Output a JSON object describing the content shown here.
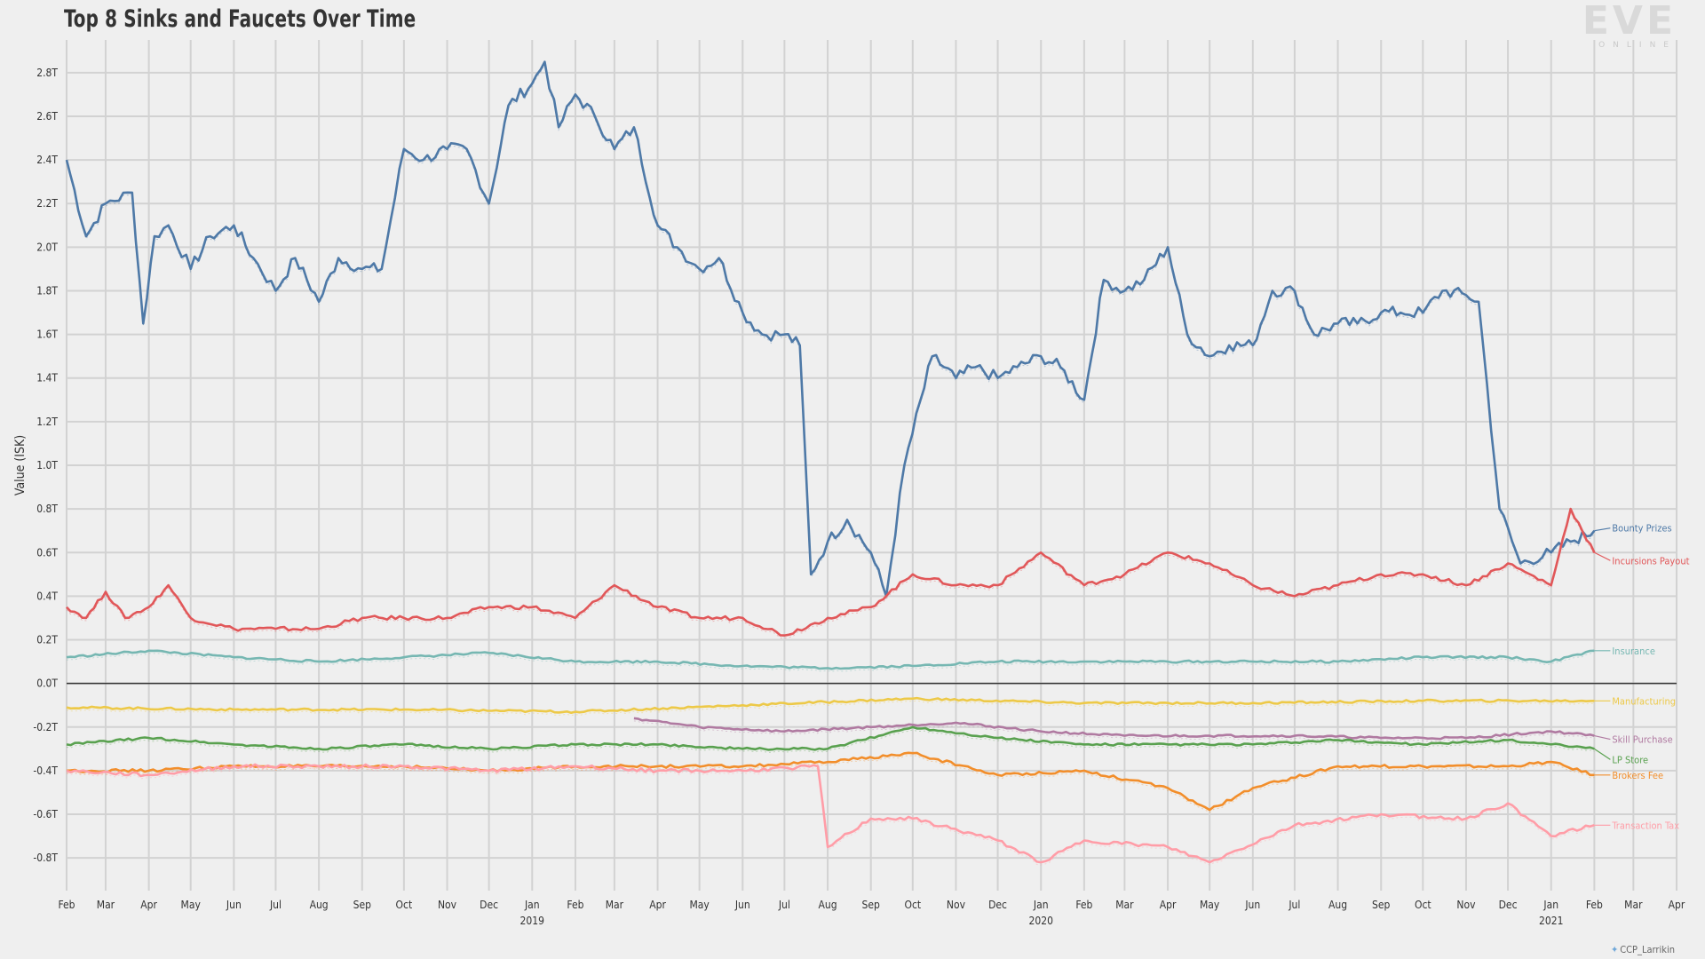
{
  "title": "Top 8 Sinks and Faucets Over Time",
  "logo": {
    "text": "EVE",
    "subtext": "ONLINE"
  },
  "credit": "CCP_Larrikin",
  "chart_data": {
    "type": "line",
    "title": "Top 8 Sinks and Faucets Over Time",
    "xlabel": "",
    "ylabel": "Value (ISK)",
    "x_range": [
      "2018-02",
      "2021-04"
    ],
    "ylim": [
      -0.95,
      2.95
    ],
    "y_unit": "T",
    "grid": true,
    "legend": "end-of-line labels",
    "yticks": [
      "-0.8T",
      "-0.6T",
      "-0.4T",
      "-0.2T",
      "0.0T",
      "0.2T",
      "0.4T",
      "0.6T",
      "0.8T",
      "1.0T",
      "1.2T",
      "1.4T",
      "1.6T",
      "1.8T",
      "2.0T",
      "2.2T",
      "2.4T",
      "2.6T",
      "2.8T"
    ],
    "xticks": [
      "Feb",
      "Mar",
      "Apr",
      "May",
      "Jun",
      "Jul",
      "Aug",
      "Sep",
      "Oct",
      "Nov",
      "Dec",
      "Jan",
      "Feb",
      "Mar",
      "Apr",
      "May",
      "Jun",
      "Jul",
      "Aug",
      "Sep",
      "Oct",
      "Nov",
      "Dec",
      "Jan",
      "Feb",
      "Mar",
      "Apr",
      "May",
      "Jun",
      "Jul",
      "Aug",
      "Sep",
      "Oct",
      "Nov",
      "Dec",
      "Jan",
      "Feb",
      "Mar",
      "Apr"
    ],
    "year_labels": [
      {
        "year": "2019",
        "month": "2019-01"
      },
      {
        "year": "2020",
        "month": "2020-01"
      },
      {
        "year": "2021",
        "month": "2021-01"
      }
    ],
    "series": [
      {
        "name": "Bounty Prizes",
        "color": "#4e79a7",
        "x": [
          "2018-02-01",
          "2018-02-15",
          "2018-03-01",
          "2018-03-20",
          "2018-03-28",
          "2018-04-05",
          "2018-04-15",
          "2018-05-01",
          "2018-05-15",
          "2018-06-01",
          "2018-06-15",
          "2018-07-01",
          "2018-07-15",
          "2018-08-01",
          "2018-08-15",
          "2018-09-01",
          "2018-09-15",
          "2018-10-01",
          "2018-10-15",
          "2018-11-01",
          "2018-11-15",
          "2018-12-01",
          "2018-12-15",
          "2019-01-01",
          "2019-01-10",
          "2019-01-20",
          "2019-02-01",
          "2019-02-15",
          "2019-03-01",
          "2019-03-15",
          "2019-04-01",
          "2019-04-15",
          "2019-05-01",
          "2019-05-15",
          "2019-06-01",
          "2019-06-15",
          "2019-07-01",
          "2019-07-12",
          "2019-07-20",
          "2019-08-01",
          "2019-08-15",
          "2019-09-01",
          "2019-09-12",
          "2019-09-25",
          "2019-10-15",
          "2019-11-01",
          "2019-11-15",
          "2019-12-01",
          "2019-12-15",
          "2020-01-01",
          "2020-01-15",
          "2020-02-01",
          "2020-02-15",
          "2020-03-01",
          "2020-03-15",
          "2020-04-01",
          "2020-04-15",
          "2020-05-01",
          "2020-05-15",
          "2020-06-01",
          "2020-06-15",
          "2020-07-01",
          "2020-07-15",
          "2020-08-01",
          "2020-08-15",
          "2020-09-01",
          "2020-09-15",
          "2020-10-01",
          "2020-10-15",
          "2020-11-01",
          "2020-11-10",
          "2020-11-25",
          "2020-12-10",
          "2021-01-01",
          "2021-01-15",
          "2021-02-01"
        ],
        "y": [
          2.4,
          2.05,
          2.2,
          2.25,
          1.65,
          2.05,
          2.1,
          1.9,
          2.05,
          2.1,
          1.95,
          1.8,
          1.95,
          1.75,
          1.95,
          1.9,
          1.9,
          2.45,
          2.4,
          2.45,
          2.45,
          2.2,
          2.65,
          2.75,
          2.85,
          2.55,
          2.7,
          2.6,
          2.45,
          2.55,
          2.1,
          2.0,
          1.9,
          1.95,
          1.7,
          1.6,
          1.6,
          1.55,
          0.5,
          0.65,
          0.75,
          0.6,
          0.4,
          1.0,
          1.5,
          1.4,
          1.45,
          1.4,
          1.45,
          1.5,
          1.45,
          1.3,
          1.85,
          1.8,
          1.85,
          2.0,
          1.6,
          1.5,
          1.55,
          1.55,
          1.8,
          1.8,
          1.6,
          1.65,
          1.65,
          1.7,
          1.7,
          1.7,
          1.8,
          1.78,
          1.75,
          0.8,
          0.55,
          0.6,
          0.65,
          0.7
        ]
      },
      {
        "name": "Incursions Payout",
        "color": "#e15759",
        "x": [
          "2018-02-01",
          "2018-02-15",
          "2018-03-01",
          "2018-03-15",
          "2018-04-01",
          "2018-04-15",
          "2018-05-01",
          "2018-06-01",
          "2018-07-01",
          "2018-08-01",
          "2018-09-01",
          "2018-10-01",
          "2018-11-01",
          "2018-12-01",
          "2019-01-01",
          "2019-02-01",
          "2019-03-01",
          "2019-04-01",
          "2019-05-01",
          "2019-06-01",
          "2019-07-01",
          "2019-08-01",
          "2019-09-01",
          "2019-10-01",
          "2019-11-01",
          "2019-12-01",
          "2020-01-01",
          "2020-02-01",
          "2020-03-01",
          "2020-04-01",
          "2020-05-01",
          "2020-06-01",
          "2020-07-01",
          "2020-08-01",
          "2020-09-01",
          "2020-10-01",
          "2020-11-01",
          "2020-12-01",
          "2021-01-01",
          "2021-01-15",
          "2021-02-01"
        ],
        "y": [
          0.35,
          0.3,
          0.42,
          0.3,
          0.35,
          0.45,
          0.3,
          0.25,
          0.25,
          0.25,
          0.3,
          0.3,
          0.3,
          0.35,
          0.35,
          0.3,
          0.45,
          0.35,
          0.3,
          0.3,
          0.22,
          0.3,
          0.35,
          0.5,
          0.45,
          0.45,
          0.6,
          0.45,
          0.5,
          0.6,
          0.55,
          0.45,
          0.4,
          0.45,
          0.5,
          0.5,
          0.45,
          0.55,
          0.45,
          0.8,
          0.6
        ]
      },
      {
        "name": "Insurance",
        "color": "#76b7b2",
        "x": [
          "2018-02-01",
          "2018-04-01",
          "2018-06-01",
          "2018-08-01",
          "2018-10-01",
          "2018-12-01",
          "2019-02-01",
          "2019-04-01",
          "2019-06-01",
          "2019-08-01",
          "2019-10-01",
          "2019-12-01",
          "2020-02-01",
          "2020-04-01",
          "2020-06-01",
          "2020-08-01",
          "2020-10-01",
          "2020-12-01",
          "2021-01-01",
          "2021-02-01"
        ],
        "y": [
          0.12,
          0.15,
          0.12,
          0.1,
          0.12,
          0.14,
          0.1,
          0.1,
          0.08,
          0.07,
          0.08,
          0.1,
          0.1,
          0.1,
          0.1,
          0.1,
          0.12,
          0.12,
          0.1,
          0.15
        ]
      },
      {
        "name": "Manufacturing",
        "color": "#edc948",
        "x": [
          "2018-02-01",
          "2018-06-01",
          "2018-10-01",
          "2019-02-01",
          "2019-06-01",
          "2019-10-01",
          "2020-02-01",
          "2020-06-01",
          "2020-10-01",
          "2021-02-01"
        ],
        "y": [
          -0.11,
          -0.12,
          -0.12,
          -0.13,
          -0.1,
          -0.07,
          -0.09,
          -0.09,
          -0.08,
          -0.08
        ]
      },
      {
        "name": "Skill Purchase",
        "color": "#b07aa1",
        "x": [
          "2019-03-15",
          "2019-05-01",
          "2019-07-01",
          "2019-09-01",
          "2019-11-01",
          "2020-01-01",
          "2020-03-01",
          "2020-05-01",
          "2020-07-01",
          "2020-09-01",
          "2020-11-01",
          "2021-01-01",
          "2021-02-01"
        ],
        "y": [
          -0.16,
          -0.2,
          -0.22,
          -0.2,
          -0.18,
          -0.22,
          -0.24,
          -0.24,
          -0.24,
          -0.25,
          -0.25,
          -0.22,
          -0.24
        ]
      },
      {
        "name": "LP Store",
        "color": "#59a14f",
        "x": [
          "2018-02-01",
          "2018-04-01",
          "2018-06-01",
          "2018-08-01",
          "2018-10-01",
          "2018-12-01",
          "2019-02-01",
          "2019-04-01",
          "2019-06-01",
          "2019-08-01",
          "2019-10-01",
          "2019-12-01",
          "2020-02-01",
          "2020-04-01",
          "2020-06-01",
          "2020-08-01",
          "2020-10-01",
          "2020-12-01",
          "2021-01-01",
          "2021-02-01"
        ],
        "y": [
          -0.28,
          -0.25,
          -0.28,
          -0.3,
          -0.28,
          -0.3,
          -0.28,
          -0.28,
          -0.3,
          -0.3,
          -0.2,
          -0.25,
          -0.28,
          -0.28,
          -0.28,
          -0.26,
          -0.28,
          -0.26,
          -0.28,
          -0.3
        ]
      },
      {
        "name": "Brokers Fee",
        "color": "#f28e2b",
        "x": [
          "2018-02-01",
          "2018-04-01",
          "2018-06-01",
          "2018-08-01",
          "2018-10-01",
          "2018-12-01",
          "2019-02-01",
          "2019-04-01",
          "2019-06-01",
          "2019-08-01",
          "2019-10-01",
          "2019-12-01",
          "2020-02-01",
          "2020-04-01",
          "2020-05-01",
          "2020-06-01",
          "2020-08-01",
          "2020-10-01",
          "2020-12-01",
          "2021-01-01",
          "2021-02-01"
        ],
        "y": [
          -0.4,
          -0.4,
          -0.38,
          -0.38,
          -0.38,
          -0.4,
          -0.38,
          -0.38,
          -0.38,
          -0.36,
          -0.32,
          -0.42,
          -0.4,
          -0.48,
          -0.58,
          -0.48,
          -0.38,
          -0.38,
          -0.38,
          -0.36,
          -0.42
        ]
      },
      {
        "name": "Transaction Tax",
        "color": "#ff9da7",
        "x": [
          "2018-02-01",
          "2018-04-01",
          "2018-06-01",
          "2018-08-01",
          "2018-10-01",
          "2018-12-01",
          "2019-02-01",
          "2019-04-01",
          "2019-06-01",
          "2019-07-25",
          "2019-08-01",
          "2019-09-01",
          "2019-10-01",
          "2019-12-01",
          "2020-01-01",
          "2020-02-01",
          "2020-04-01",
          "2020-05-01",
          "2020-07-01",
          "2020-09-01",
          "2020-11-01",
          "2020-12-01",
          "2021-01-01",
          "2021-02-01"
        ],
        "y": [
          -0.4,
          -0.42,
          -0.38,
          -0.38,
          -0.38,
          -0.4,
          -0.38,
          -0.4,
          -0.4,
          -0.38,
          -0.75,
          -0.62,
          -0.62,
          -0.72,
          -0.82,
          -0.72,
          -0.75,
          -0.82,
          -0.65,
          -0.6,
          -0.62,
          -0.55,
          -0.7,
          -0.65
        ]
      }
    ]
  }
}
